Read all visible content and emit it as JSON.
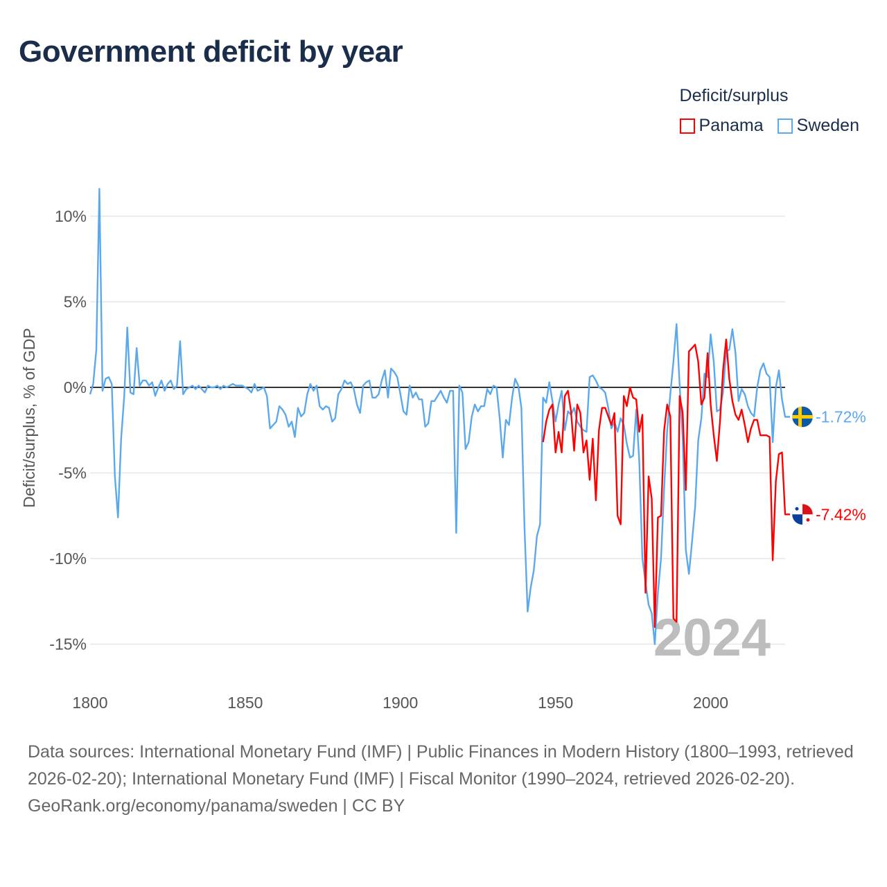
{
  "title": "Government deficit by year",
  "legend": {
    "title": "Deficit/surplus",
    "items": [
      {
        "name": "Panama",
        "color": "#ff0000"
      },
      {
        "name": "Sweden",
        "color": "#5ba8ec"
      }
    ]
  },
  "footer": {
    "sources": "Data sources: International Monetary Fund (IMF) | Public Finances in Modern History (1800–1993, retrieved 2026-02-20); International Monetary Fund (IMF) | Fiscal Monitor (1990–2024, retrieved 2026-02-20).",
    "credit": "GeoRank.org/economy/panama/sweden | CC BY"
  },
  "chart_data": {
    "type": "line",
    "title": "Government deficit by year",
    "xlabel": "",
    "ylabel": "Deficit/surplus, % of GDP",
    "xlim": [
      1800,
      2024
    ],
    "ylim": [
      -16,
      12
    ],
    "x_ticks": [
      1800,
      1850,
      1900,
      1950,
      2000
    ],
    "x_tick_labels": [
      "1800",
      "1850",
      "1900",
      "1950",
      "2000"
    ],
    "y_ticks": [
      10,
      5,
      0,
      -5,
      -10,
      -15
    ],
    "y_tick_labels": [
      "10%",
      "5%",
      "0%",
      "-5%",
      "-10%",
      "-15%"
    ],
    "grid": true,
    "legend_placement": "top-right",
    "year_annotation": "2024",
    "series": [
      {
        "name": "Sweden",
        "color": "#5ba8ec",
        "start_year": 1800,
        "end_label": "-1.72%",
        "values": [
          -0.4,
          0.2,
          2.2,
          11.6,
          -0.2,
          0.5,
          0.6,
          0.2,
          -5.2,
          -7.6,
          -3,
          -0.5,
          3.5,
          -0.3,
          -0.4,
          2.3,
          0.1,
          0.4,
          0.4,
          0.1,
          0.3,
          -0.5,
          0,
          0.4,
          -0.2,
          0.2,
          0.4,
          -0.1,
          0.1,
          2.7,
          -0.4,
          -0.1,
          0,
          0.1,
          -0.1,
          0.1,
          -0.1,
          -0.3,
          0.1,
          0,
          0,
          0.1,
          -0.1,
          0.1,
          0,
          0.1,
          0.2,
          0.1,
          0.1,
          0.1,
          0,
          -0.1,
          -0.3,
          0.2,
          -0.2,
          -0.1,
          0,
          -0.5,
          -2.4,
          -2.2,
          -2.0,
          -1.1,
          -1.3,
          -1.6,
          -2.3,
          -2.0,
          -2.9,
          -1.2,
          -1.7,
          -1.5,
          -0.4,
          0.2,
          -0.2,
          0.1,
          -1.1,
          -1.3,
          -1.1,
          -1.2,
          -2.0,
          -1.8,
          -0.4,
          -0.1,
          0.4,
          0.2,
          0.3,
          -0.1,
          -1.0,
          -1.5,
          0.1,
          0.3,
          0.4,
          -0.6,
          -0.6,
          -0.4,
          0.4,
          1.0,
          -0.6,
          1.1,
          0.9,
          0.6,
          -0.4,
          -1.4,
          -1.6,
          0.1,
          -0.6,
          -0.3,
          -0.7,
          -0.7,
          -2.3,
          -2.1,
          -0.8,
          -0.8,
          -0.5,
          -0.2,
          -0.6,
          -0.9,
          -0.2,
          -0.2,
          -8.5,
          0.1,
          -0.3,
          -3.6,
          -3.2,
          -1.7,
          -1.0,
          -1.4,
          -1.1,
          -1.1,
          -0.1,
          -0.4,
          0.1,
          0,
          -1.8,
          -4.1,
          -1.9,
          -2.2,
          -0.6,
          0.5,
          0.1,
          -1.2,
          -8.2,
          -13.1,
          -11.7,
          -10.7,
          -8.7,
          -8.0,
          -0.6,
          -0.9,
          0.3,
          -0.8,
          -2.0,
          -1.0,
          -0.2,
          -2.5,
          -1.4,
          -1.6,
          -1.2,
          -2.0,
          -2.3,
          -2.5,
          -2.6,
          0.6,
          0.7,
          0.4,
          0,
          -0.1,
          -0.3,
          -1.2,
          -2.4,
          -2.0,
          -2.6,
          -1.8,
          -2.2,
          -3.3,
          -4.1,
          -4.0,
          -1.3,
          -4.3,
          -10.0,
          -11.4,
          -12.7,
          -13.2,
          -15.0,
          -12.0,
          -10.0,
          -5.9,
          -2.5,
          -0.4,
          1.5,
          3.7,
          0.1,
          -3.0,
          -9.5,
          -10.9,
          -9.0,
          -7.0,
          -3.1,
          -1.8,
          0.8,
          0.6,
          3.1,
          1.5,
          -1.4,
          -1.3,
          -0.3,
          2.1,
          2.2,
          3.4,
          2.0,
          -0.8,
          -0.1,
          -0.4,
          -1.1,
          -1.5,
          -1.7,
          0,
          1.0,
          1.4,
          0.8,
          0.6,
          -3.2,
          0,
          1.0,
          -0.7,
          -1.72
        ]
      },
      {
        "name": "Panama",
        "color": "#ff0000",
        "start_year": 1946,
        "end_label": "-7.42%",
        "values": [
          -3.2,
          -2.0,
          -1.3,
          -1.0,
          -3.8,
          -2.6,
          -3.8,
          -0.5,
          -0.2,
          -1.4,
          -3.7,
          -1.0,
          -1.5,
          -3.8,
          -3.1,
          -5.4,
          -3.0,
          -6.6,
          -2.5,
          -1.2,
          -1.2,
          -1.7,
          -2.2,
          -1.5,
          -7.5,
          -8.0,
          -0.5,
          -1.1,
          0,
          -0.6,
          -0.7,
          -2.6,
          -1.6,
          -12.0,
          -5.2,
          -6.5,
          -14.0,
          -7.6,
          -7.5,
          -2.5,
          -1.0,
          -1.7,
          -13.5,
          -13.7,
          -0.5,
          -1.5,
          -6.0,
          2.1,
          2.3,
          2.5,
          1.5,
          -1.0,
          -0.6,
          2.0,
          -1.0,
          -2.8,
          -4.3,
          -2.0,
          1.0,
          2.8,
          0.5,
          -0.8,
          -1.6,
          -1.9,
          -1.3,
          -2.2,
          -3.2,
          -2.4,
          -1.9,
          -1.9,
          -2.8,
          -2.8,
          -2.8,
          -2.9,
          -10.1,
          -5.5,
          -3.9,
          -3.8,
          -7.42
        ]
      }
    ]
  }
}
